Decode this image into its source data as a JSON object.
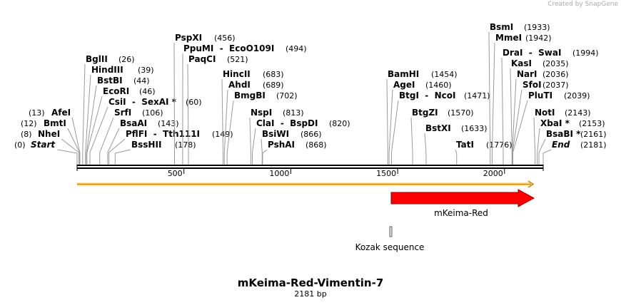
{
  "credit": "Created by SnapGene",
  "map": {
    "name": "mKeima-Red-Vimentin-7",
    "length_label": "2181 bp",
    "length": 2181,
    "ticks": [
      500,
      1000,
      1500,
      2000
    ],
    "features": [
      {
        "name": "mKeima-Red"
      },
      {
        "name": "Kozak sequence"
      }
    ],
    "sites": [
      {
        "name": "Start",
        "position": 0,
        "position_label": "(0)"
      },
      {
        "name": "NheI",
        "position": 8,
        "position_label": "(8)"
      },
      {
        "name": "BmtI",
        "position": 12,
        "position_label": "(12)"
      },
      {
        "name": "AfeI",
        "position": 13,
        "position_label": "(13)"
      },
      {
        "name": "BglII",
        "position": 26,
        "position_label": "(26)"
      },
      {
        "name": "HindIII",
        "position": 39,
        "position_label": "(39)"
      },
      {
        "name": "BstBI",
        "position": 44,
        "position_label": "(44)"
      },
      {
        "name": "EcoRI",
        "position": 46,
        "position_label": "(46)"
      },
      {
        "name": "CsiI  -  SexAI *",
        "position": 60,
        "position_label": "(60)"
      },
      {
        "name": "SrfI",
        "position": 106,
        "position_label": "(106)"
      },
      {
        "name": "BsaAI",
        "position": 143,
        "position_label": "(143)"
      },
      {
        "name": "PflFI  -  Tth111I",
        "position": 149,
        "position_label": "(149)"
      },
      {
        "name": "BssHII",
        "position": 178,
        "position_label": "(178)"
      },
      {
        "name": "PspXI",
        "position": 456,
        "position_label": "(456)"
      },
      {
        "name": "PpuMI  -  EcoO109I",
        "position": 494,
        "position_label": "(494)"
      },
      {
        "name": "PaqCI",
        "position": 521,
        "position_label": "(521)"
      },
      {
        "name": "HincII",
        "position": 683,
        "position_label": "(683)"
      },
      {
        "name": "AhdI",
        "position": 689,
        "position_label": "(689)"
      },
      {
        "name": "BmgBI",
        "position": 702,
        "position_label": "(702)"
      },
      {
        "name": "NspI",
        "position": 813,
        "position_label": "(813)"
      },
      {
        "name": "ClaI  -  BspDI",
        "position": 820,
        "position_label": "(820)"
      },
      {
        "name": "BsiWI",
        "position": 866,
        "position_label": "(866)"
      },
      {
        "name": "PshAI",
        "position": 868,
        "position_label": "(868)"
      },
      {
        "name": "BamHI",
        "position": 1454,
        "position_label": "(1454)"
      },
      {
        "name": "AgeI",
        "position": 1460,
        "position_label": "(1460)"
      },
      {
        "name": "BtgI  -  NcoI",
        "position": 1471,
        "position_label": "(1471)"
      },
      {
        "name": "BtgZI",
        "position": 1570,
        "position_label": "(1570)"
      },
      {
        "name": "BstXI",
        "position": 1633,
        "position_label": "(1633)"
      },
      {
        "name": "TatI",
        "position": 1776,
        "position_label": "(1776)"
      },
      {
        "name": "BsmI",
        "position": 1933,
        "position_label": "(1933)"
      },
      {
        "name": "MmeI",
        "position": 1942,
        "position_label": "(1942)"
      },
      {
        "name": "DraI  -  SwaI",
        "position": 1994,
        "position_label": "(1994)"
      },
      {
        "name": "KasI",
        "position": 2035,
        "position_label": "(2035)"
      },
      {
        "name": "NarI",
        "position": 2036,
        "position_label": "(2036)"
      },
      {
        "name": "SfoI",
        "position": 2037,
        "position_label": "(2037)"
      },
      {
        "name": "PluTI",
        "position": 2039,
        "position_label": "(2039)"
      },
      {
        "name": "NotI",
        "position": 2143,
        "position_label": "(2143)"
      },
      {
        "name": "XbaI *",
        "position": 2153,
        "position_label": "(2153)"
      },
      {
        "name": "BsaBI *",
        "position": 2161,
        "position_label": "(2161)"
      },
      {
        "name": "End",
        "position": 2181,
        "position_label": "(2181)"
      }
    ]
  }
}
